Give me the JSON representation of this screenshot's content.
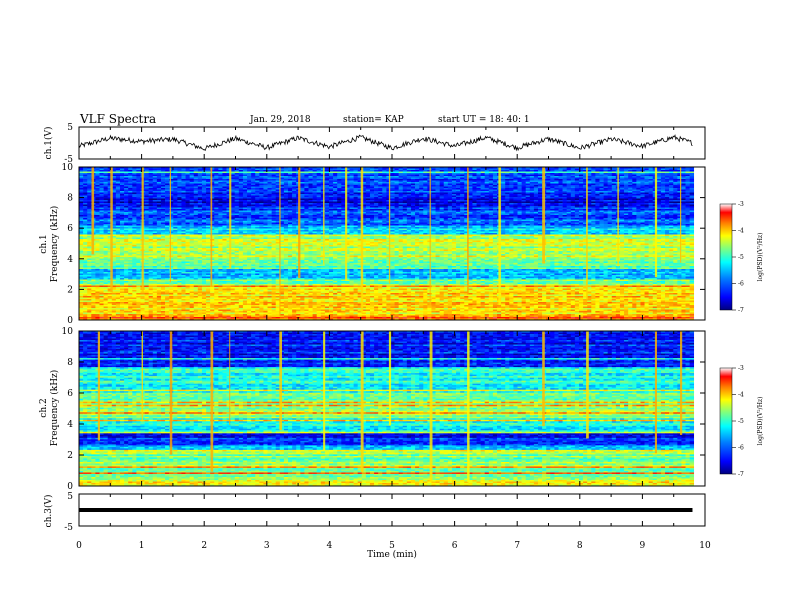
{
  "header": {
    "title": "VLF Spectra",
    "date": "Jan. 29, 2018",
    "station": "station= KAP",
    "start": "start  UT =   18: 40: 1"
  },
  "chart_data": [
    {
      "type": "line",
      "panel": "ch1-voltage",
      "ylabel": "ch.1(V)",
      "ylim": [
        -5,
        5
      ],
      "yticks": [
        "5",
        "-5"
      ],
      "xlim": [
        0,
        10
      ],
      "line_color": "#000000",
      "description_of_signal": "noisy oscillation, roughly between -2.5 and 2.5 V",
      "series": [
        {
          "x": [
            0,
            0.5,
            1.0,
            1.5,
            2.0,
            2.5,
            3.0,
            3.5,
            4.0,
            4.5,
            5.0,
            5.5,
            6.0,
            6.5,
            7.0,
            7.5,
            8.0,
            8.5,
            9.0,
            9.5,
            9.8
          ],
          "values": [
            -1,
            1.5,
            0.5,
            1.2,
            -1.8,
            1.4,
            -1.5,
            1.6,
            -1.2,
            1.8,
            -1.6,
            1.5,
            -1.0,
            1.7,
            -1.5,
            1.3,
            -1.6,
            1.2,
            -1.0,
            1.8,
            0
          ]
        }
      ]
    },
    {
      "type": "heatmap",
      "panel": "ch1-spectrogram",
      "ylabel": "ch.1\nFrequency  (kHz)",
      "ylim": [
        0,
        10
      ],
      "yticks": [
        "0",
        "2",
        "4",
        "6",
        "8",
        "10"
      ],
      "xlim": [
        0,
        10
      ],
      "colorbar": {
        "label": "log(PSD)(V²/Hz)",
        "range": [
          -7,
          -3
        ],
        "ticks": [
          "-3",
          "-4",
          "-5",
          "-6",
          "-7"
        ]
      },
      "bands_khz": [
        {
          "from": 0.0,
          "to": 0.3,
          "level": 0.78
        },
        {
          "from": 0.3,
          "to": 2.2,
          "level": 0.66
        },
        {
          "from": 2.2,
          "to": 2.6,
          "level": 0.5
        },
        {
          "from": 2.6,
          "to": 3.3,
          "level": 0.3
        },
        {
          "from": 3.3,
          "to": 4.0,
          "level": 0.48
        },
        {
          "from": 4.0,
          "to": 5.6,
          "level": 0.56
        },
        {
          "from": 5.6,
          "to": 6.2,
          "level": 0.35
        },
        {
          "from": 6.2,
          "to": 7.5,
          "level": 0.2
        },
        {
          "from": 7.5,
          "to": 8.0,
          "level": 0.1
        },
        {
          "from": 8.0,
          "to": 10.0,
          "level": 0.18
        }
      ],
      "bright_vertical_events_min": [
        0.2,
        0.5,
        1.0,
        1.45,
        2.1,
        2.4,
        3.2,
        3.5,
        3.9,
        4.25,
        4.5,
        4.95,
        5.6,
        6.2,
        6.7,
        7.4,
        8.1,
        8.6,
        9.2,
        9.6
      ]
    },
    {
      "type": "heatmap",
      "panel": "ch2-spectrogram",
      "ylabel": "ch.2\nFrequency  (kHz)",
      "ylim": [
        0,
        10
      ],
      "yticks": [
        "0",
        "2",
        "4",
        "6",
        "8",
        "10"
      ],
      "xlim": [
        0,
        10
      ],
      "colorbar": {
        "label": "log(PSD)(V²/Hz)",
        "range": [
          -7,
          -3
        ],
        "ticks": [
          "-3",
          "-4",
          "-5",
          "-6",
          "-7"
        ]
      },
      "bands_khz": [
        {
          "from": 0.0,
          "to": 0.4,
          "level": 0.6
        },
        {
          "from": 0.4,
          "to": 2.2,
          "level": 0.5
        },
        {
          "from": 2.2,
          "to": 2.6,
          "level": 0.32
        },
        {
          "from": 2.6,
          "to": 3.4,
          "level": 0.15
        },
        {
          "from": 3.4,
          "to": 4.4,
          "level": 0.38
        },
        {
          "from": 4.4,
          "to": 6.0,
          "level": 0.5
        },
        {
          "from": 6.0,
          "to": 7.6,
          "level": 0.4
        },
        {
          "from": 7.6,
          "to": 10.0,
          "level": 0.14
        }
      ],
      "bright_vertical_events_min": [
        0.3,
        1.0,
        1.45,
        2.1,
        2.4,
        3.2,
        3.9,
        4.5,
        4.95,
        5.6,
        6.2,
        7.4,
        8.1,
        9.2,
        9.6
      ]
    },
    {
      "type": "line",
      "panel": "ch3-voltage",
      "ylabel": "ch.3(V)",
      "ylim": [
        -5,
        5
      ],
      "yticks": [
        "5",
        "-5"
      ],
      "xlabel": "Time  (min)",
      "xlim": [
        0,
        10
      ],
      "xticks": [
        "0",
        "1",
        "2",
        "3",
        "4",
        "5",
        "6",
        "7",
        "8",
        "9",
        "10"
      ],
      "line_color": "#000000",
      "series": [
        {
          "x": [
            0,
            9.8
          ],
          "values": [
            0,
            0
          ]
        }
      ]
    }
  ],
  "colormap": [
    "#00007f",
    "#0000ff",
    "#007fff",
    "#00ffff",
    "#7fff7f",
    "#ffff00",
    "#ff7f00",
    "#ff0000",
    "#ffffff"
  ]
}
